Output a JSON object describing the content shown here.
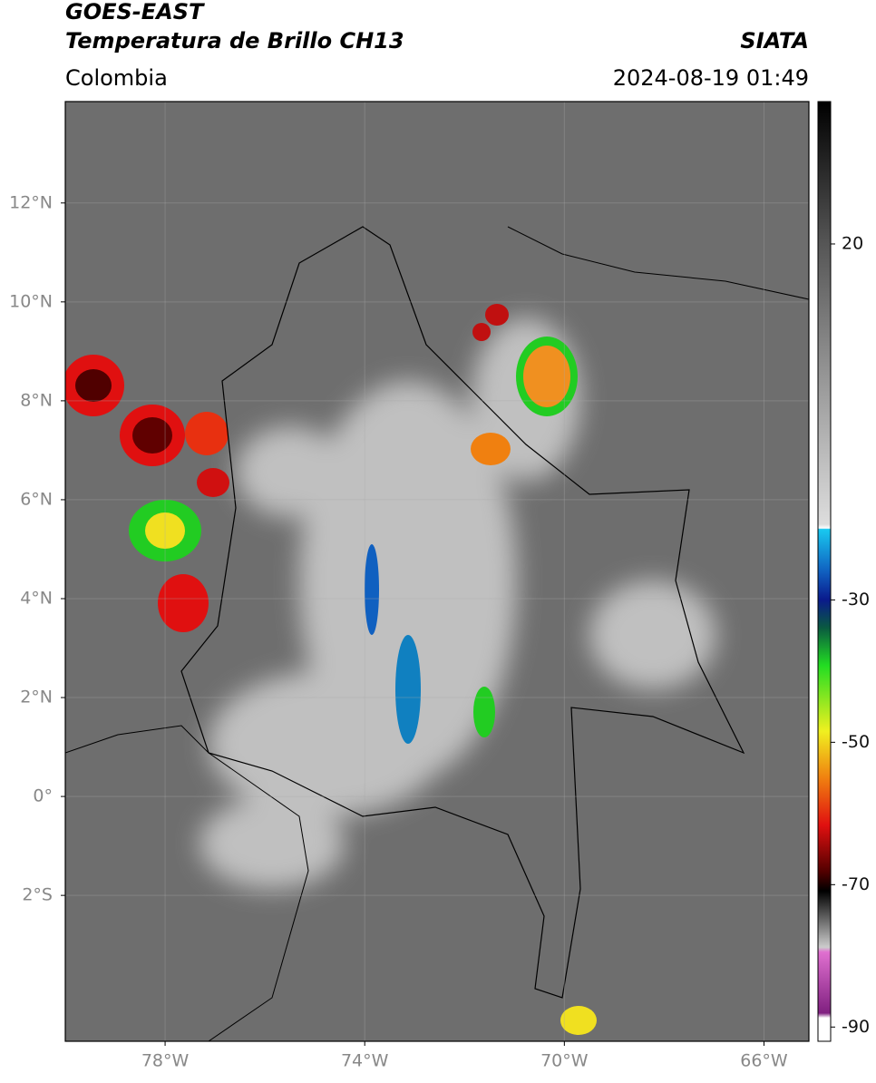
{
  "header": {
    "title": "GOES-EAST",
    "subtitle": "Temperatura de Brillo CH13",
    "source": "SIATA",
    "region": "Colombia",
    "datetime": "2024-08-19 01:49"
  },
  "map": {
    "lonlim": [
      -80,
      -65.1
    ],
    "latlim": [
      -4.95,
      14.05
    ],
    "lon_ticks": [
      {
        "value": -78,
        "label": "78°W"
      },
      {
        "value": -74,
        "label": "74°W"
      },
      {
        "value": -70,
        "label": "70°W"
      },
      {
        "value": -66,
        "label": "66°W"
      }
    ],
    "lat_ticks": [
      {
        "value": 12,
        "label": "12°N"
      },
      {
        "value": 10,
        "label": "10°N"
      },
      {
        "value": 8,
        "label": "8°N"
      },
      {
        "value": 6,
        "label": "6°N"
      },
      {
        "value": 4,
        "label": "4°N"
      },
      {
        "value": 2,
        "label": "2°N"
      },
      {
        "value": 0,
        "label": "0°"
      },
      {
        "value": -2,
        "label": "2°S"
      }
    ]
  },
  "colorbar": {
    "lim": [
      -92,
      40
    ],
    "ticks": [
      20,
      -30,
      -50,
      -70,
      -90
    ]
  }
}
